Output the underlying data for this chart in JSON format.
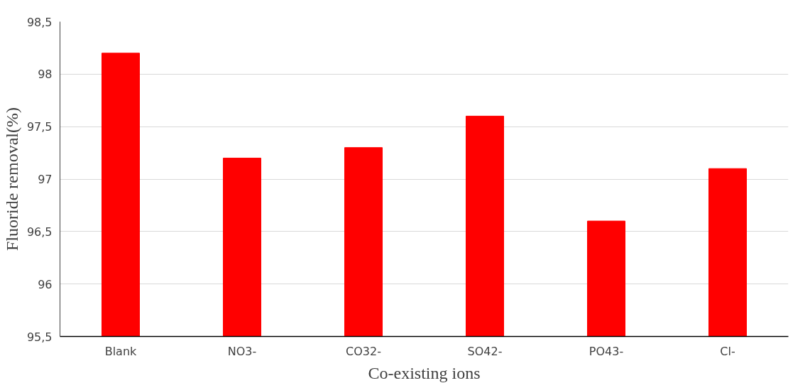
{
  "chart_data": {
    "type": "bar",
    "xlabel": "Co-existing ions",
    "ylabel": "Fluoride removal(%)",
    "categories": [
      "Blank",
      "NO3-",
      "CO32-",
      "SO42-",
      "PO43-",
      "Cl-"
    ],
    "values": [
      98.2,
      97.2,
      97.3,
      97.6,
      96.6,
      97.1
    ],
    "color": "#ff0000",
    "ylim": [
      95.5,
      98.5
    ],
    "yticks": [
      {
        "value": 95.5,
        "label": "95,5"
      },
      96,
      {
        "value": 96.5,
        "label": "96,5"
      },
      97,
      {
        "value": 97.5,
        "label": "97,5"
      },
      98,
      {
        "value": 98.5,
        "label": "98,5"
      }
    ],
    "grid": "y"
  }
}
